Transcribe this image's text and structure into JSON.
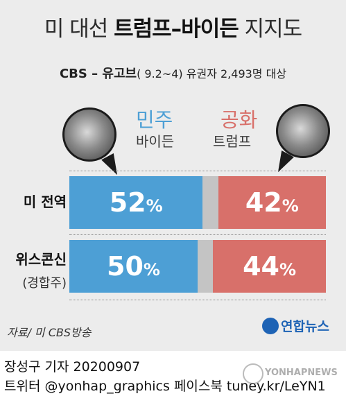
{
  "chart_data": {
    "type": "bar",
    "title_prefix": "미 대선 ",
    "title_bold": "트럼프–바이든",
    "title_suffix": " 지지도",
    "subtitle_bold": "CBS – 유고브",
    "subtitle_rest": "( 9.2~4) 유권자 2,493명 대상",
    "categories": [
      "미 전역",
      "위스콘신"
    ],
    "category_sublabels": [
      "",
      "(경합주)"
    ],
    "series": [
      {
        "name": "민주 바이든",
        "party": "민주",
        "candidate": "바이든",
        "values": [
          52,
          50
        ],
        "color": "#4d9fd5"
      },
      {
        "name": "공화 트럼프",
        "party": "공화",
        "candidate": "트럼프",
        "values": [
          42,
          44
        ],
        "color": "#d8706a"
      }
    ],
    "undecided_color": "#c4c4c4",
    "value_unit": "%",
    "xlim": [
      0,
      100
    ],
    "source": "자료/ 미 CBS방송"
  },
  "logo": {
    "text": "연합뉴스",
    "color": "#1e63b5"
  },
  "byline": {
    "line1": "장성구 기자  20200907",
    "line2": "트위터 @yonhap_graphics  페이스북 tuney.kr/LeYN1"
  },
  "watermark": "YONHAPNEWS",
  "portraits": {
    "left": "biden-portrait",
    "right": "trump-portrait"
  },
  "colors": {
    "background": "#ececec",
    "dem": "#4d9fd5",
    "rep": "#d8706a",
    "gray": "#c4c4c4"
  }
}
